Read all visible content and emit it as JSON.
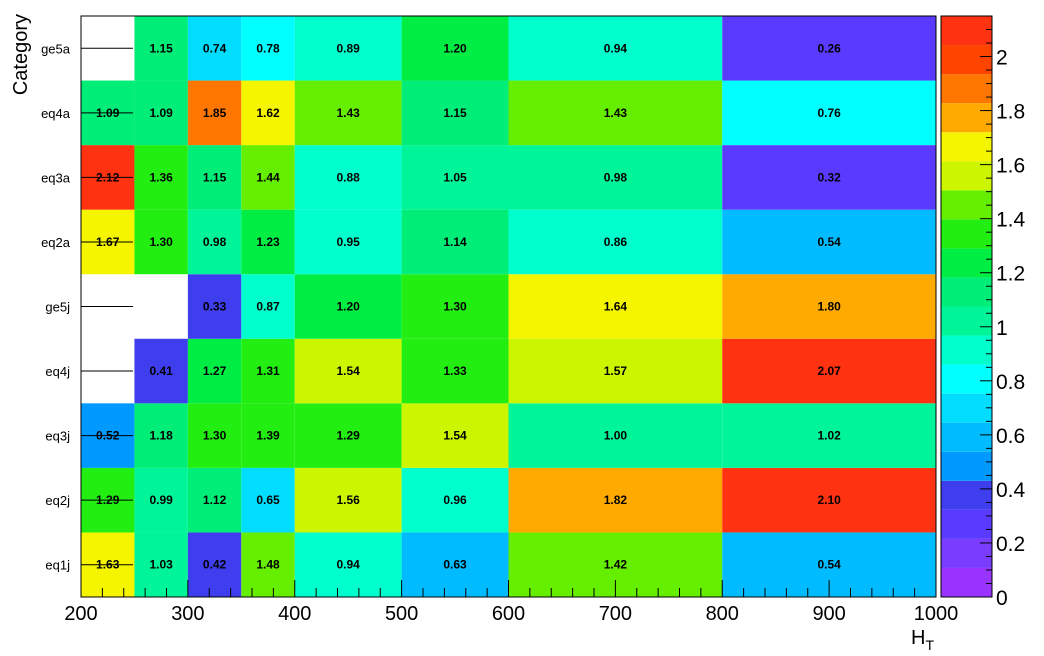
{
  "chart_data": {
    "type": "heatmap",
    "title": "",
    "xlabel": "H",
    "xlabel_sub": "T",
    "ylabel": "Category",
    "x_edges": [
      200,
      250,
      300,
      350,
      400,
      500,
      600,
      800,
      1000
    ],
    "x_ticks": [
      "200",
      "300",
      "400",
      "500",
      "600",
      "700",
      "800",
      "900",
      "1000"
    ],
    "xlim": [
      200,
      1000
    ],
    "categories_bottom_to_top": [
      "eq1j",
      "eq2j",
      "eq3j",
      "eq4j",
      "ge5j",
      "eq2a",
      "eq3a",
      "eq4a",
      "ge5a"
    ],
    "values_bottom_to_top": [
      [
        1.63,
        1.03,
        0.42,
        1.48,
        0.94,
        0.63,
        1.42,
        0.54
      ],
      [
        1.29,
        0.99,
        1.12,
        0.65,
        1.56,
        0.96,
        1.82,
        2.1
      ],
      [
        0.52,
        1.18,
        1.3,
        1.39,
        1.29,
        1.54,
        1.0,
        1.02
      ],
      [
        null,
        0.41,
        1.27,
        1.31,
        1.54,
        1.33,
        1.57,
        2.07
      ],
      [
        null,
        null,
        0.33,
        0.87,
        1.2,
        1.3,
        1.64,
        1.8
      ],
      [
        1.67,
        1.3,
        0.98,
        1.23,
        0.95,
        1.14,
        0.86,
        0.54
      ],
      [
        2.12,
        1.36,
        1.15,
        1.44,
        0.88,
        1.05,
        0.98,
        0.32
      ],
      [
        1.09,
        1.09,
        1.85,
        1.62,
        1.43,
        1.15,
        1.43,
        0.76
      ],
      [
        null,
        1.15,
        0.74,
        0.78,
        0.89,
        1.2,
        0.94,
        0.26
      ]
    ],
    "zlim": [
      0,
      2.15
    ],
    "colorbar_ticks": [
      "0",
      "0.2",
      "0.4",
      "0.6",
      "0.8",
      "1",
      "1.2",
      "1.4",
      "1.6",
      "1.8",
      "2"
    ],
    "colorbar_bins": 20,
    "palette": [
      "#9933ff",
      "#7a3dff",
      "#5a3aff",
      "#3e3eef",
      "#0099ff",
      "#00bbff",
      "#00ddff",
      "#00ffff",
      "#00ffcc",
      "#00f599",
      "#00ee77",
      "#00ee44",
      "#22ee11",
      "#66ee00",
      "#ccf500",
      "#f5f500",
      "#ffaa00",
      "#ff7700",
      "#ff4400",
      "#ff3311"
    ],
    "grid": false
  }
}
